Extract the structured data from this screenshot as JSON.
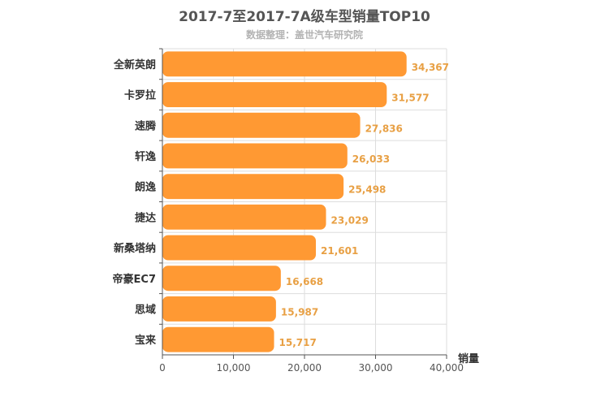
{
  "chart_data": {
    "type": "bar",
    "orientation": "horizontal",
    "title": "2017-7至2017-7A级车型销量TOP10",
    "subtitle": "数据整理：盖世汽车研究院",
    "xlabel": "销量",
    "ylabel": "",
    "categories": [
      "全新英朗",
      "卡罗拉",
      "速腾",
      "轩逸",
      "朗逸",
      "捷达",
      "新桑塔纳",
      "帝豪EC7",
      "思域",
      "宝来"
    ],
    "values": [
      34367,
      31577,
      27836,
      26033,
      25498,
      23029,
      21601,
      16668,
      15987,
      15717
    ],
    "value_labels": [
      "34,367",
      "31,577",
      "27,836",
      "26,033",
      "25,498",
      "23,029",
      "21,601",
      "16,668",
      "15,987",
      "15,717"
    ],
    "xlim": [
      0,
      40000
    ],
    "xticks": [
      0,
      10000,
      20000,
      30000,
      40000
    ],
    "xtick_labels": [
      "0",
      "10,000",
      "20,000",
      "30,000",
      "40,000"
    ],
    "grid": true,
    "bar_color": "#ff9933",
    "label_color": "#e8a044"
  }
}
